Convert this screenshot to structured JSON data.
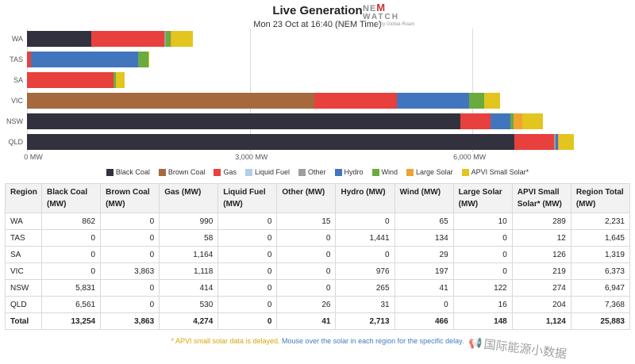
{
  "header": {
    "title": "Live Generation",
    "subtitle": "Mon 23 Oct at 16:40 (NEM Time)",
    "logo": {
      "part1": "NE",
      "part_m": "M",
      "line2": "WATCH",
      "byline": "by Global-Roam"
    }
  },
  "chart_data": {
    "type": "bar",
    "orientation": "horizontal",
    "title": "Live Generation",
    "xlabel": "MW",
    "ylabel": "Region",
    "categories": [
      "WA",
      "TAS",
      "SA",
      "VIC",
      "NSW",
      "QLD"
    ],
    "series": [
      {
        "name": "Black Coal",
        "color": "#32323e",
        "values": [
          862,
          0,
          0,
          0,
          5831,
          6561
        ]
      },
      {
        "name": "Brown Coal",
        "color": "#a5693d",
        "values": [
          0,
          0,
          0,
          3863,
          0,
          0
        ]
      },
      {
        "name": "Gas",
        "color": "#e8403d",
        "values": [
          990,
          58,
          1164,
          1118,
          414,
          530
        ]
      },
      {
        "name": "Liquid Fuel",
        "color": "#b3cde8",
        "values": [
          0,
          0,
          0,
          0,
          0,
          0
        ]
      },
      {
        "name": "Other",
        "color": "#9e9e9e",
        "values": [
          15,
          0,
          0,
          0,
          0,
          26
        ]
      },
      {
        "name": "Hydro",
        "color": "#4176be",
        "values": [
          0,
          1441,
          0,
          976,
          265,
          31
        ]
      },
      {
        "name": "Wind",
        "color": "#6aab3f",
        "values": [
          65,
          134,
          29,
          197,
          41,
          0
        ]
      },
      {
        "name": "Large Solar",
        "color": "#efa432",
        "values": [
          10,
          0,
          0,
          0,
          122,
          16
        ]
      },
      {
        "name": "APVI Small Solar*",
        "color": "#e3c51f",
        "values": [
          289,
          12,
          126,
          219,
          274,
          204
        ]
      }
    ],
    "x_ticks": [
      "0 MW",
      "3,000 MW",
      "6,000 MW"
    ],
    "x_tick_values": [
      0,
      3000,
      6000
    ],
    "xlim": [
      0,
      8100
    ],
    "grid": true,
    "legend_position": "bottom"
  },
  "table": {
    "columns": [
      "Region",
      "Black Coal\n(MW)",
      "Brown Coal\n(MW)",
      "Gas (MW)",
      "Liquid Fuel\n(MW)",
      "Other (MW)",
      "Hydro (MW)",
      "Wind (MW)",
      "Large Solar\n(MW)",
      "APVI Small\nSolar* (MW)",
      "Region Total\n(MW)"
    ],
    "rows": [
      [
        "WA",
        "862",
        "0",
        "990",
        "0",
        "15",
        "0",
        "65",
        "10",
        "289",
        "2,231"
      ],
      [
        "TAS",
        "0",
        "0",
        "58",
        "0",
        "0",
        "1,441",
        "134",
        "0",
        "12",
        "1,645"
      ],
      [
        "SA",
        "0",
        "0",
        "1,164",
        "0",
        "0",
        "0",
        "29",
        "0",
        "126",
        "1,319"
      ],
      [
        "VIC",
        "0",
        "3,863",
        "1,118",
        "0",
        "0",
        "976",
        "197",
        "0",
        "219",
        "6,373"
      ],
      [
        "NSW",
        "5,831",
        "0",
        "414",
        "0",
        "0",
        "265",
        "41",
        "122",
        "274",
        "6,947"
      ],
      [
        "QLD",
        "6,561",
        "0",
        "530",
        "0",
        "26",
        "31",
        "0",
        "16",
        "204",
        "7,368"
      ]
    ],
    "total_row": [
      "Total",
      "13,254",
      "3,863",
      "4,274",
      "0",
      "41",
      "2,713",
      "466",
      "148",
      "1,124",
      "25,883"
    ]
  },
  "footnote": {
    "part1": "* APVI small solar data is delayed.",
    "part2": " Mouse over the solar in each region for the specific delay."
  },
  "watermark": {
    "icon": "📢",
    "text": "国际能源小数据"
  }
}
